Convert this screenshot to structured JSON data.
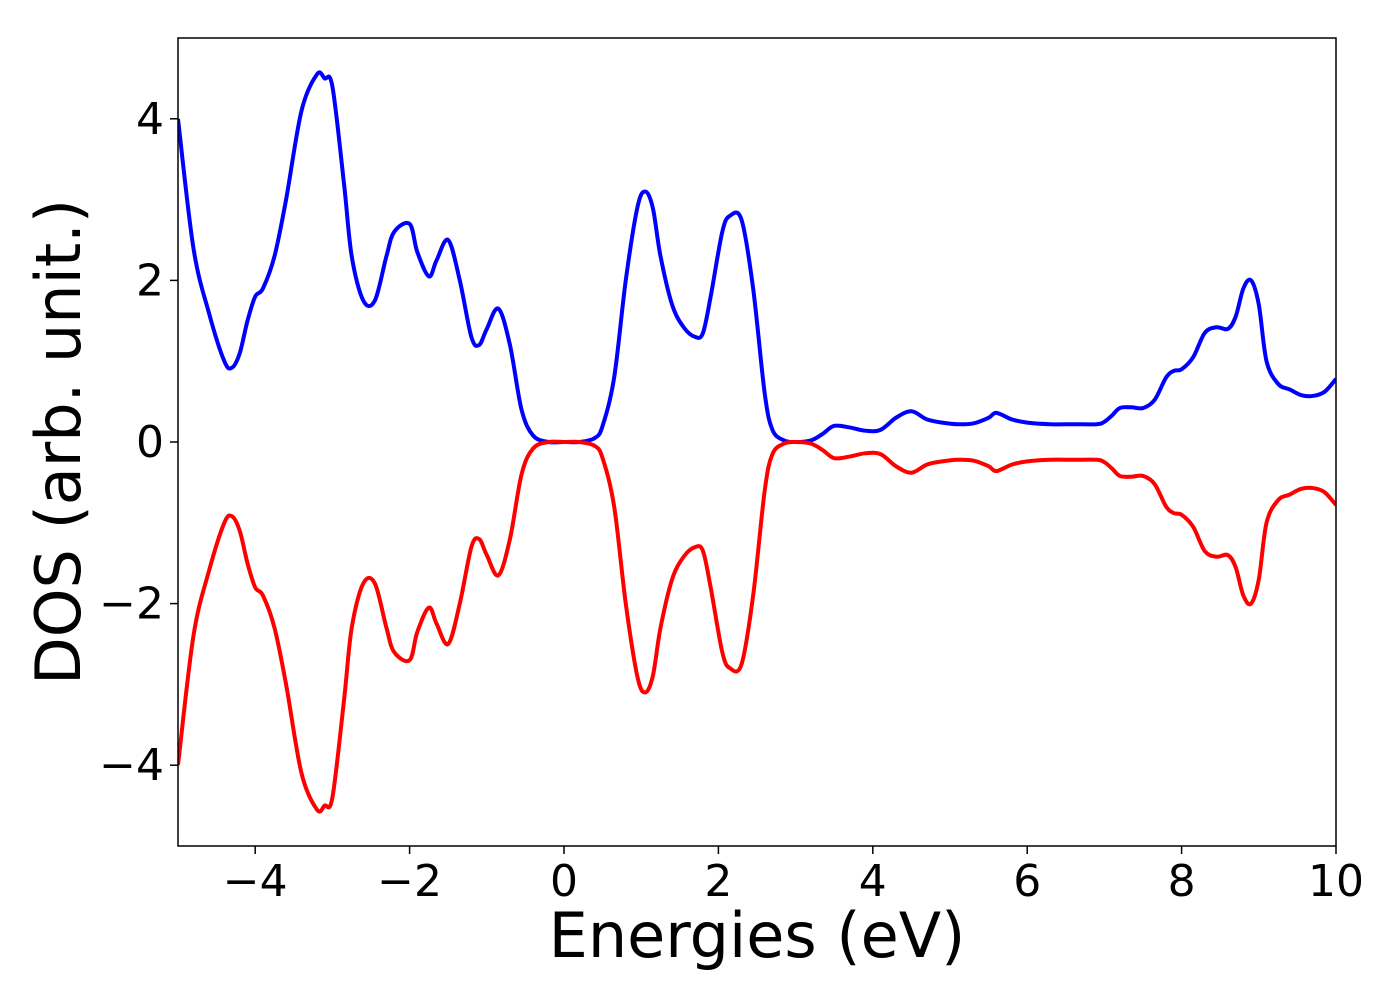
{
  "chart_data": {
    "type": "line",
    "title": "",
    "xlabel": "Energies (eV)",
    "ylabel": "DOS (arb. unit.)",
    "xlim": [
      -5,
      10
    ],
    "ylim": [
      -5,
      5
    ],
    "x_ticks": [
      -4,
      -2,
      0,
      2,
      4,
      6,
      8,
      10
    ],
    "y_ticks": [
      -4,
      -2,
      0,
      2,
      4
    ],
    "x_tick_labels": [
      "−4",
      "−2",
      "0",
      "2",
      "4",
      "6",
      "8",
      "10"
    ],
    "y_tick_labels": [
      "−4",
      "−2",
      "0",
      "2",
      "4"
    ],
    "grid": false,
    "legend": "none",
    "series": [
      {
        "color": "#0000ff",
        "x": [
          -5.0,
          -4.8,
          -4.6,
          -4.4,
          -4.3,
          -4.2,
          -4.1,
          -4.0,
          -3.9,
          -3.75,
          -3.6,
          -3.4,
          -3.2,
          -3.1,
          -3.0,
          -2.85,
          -2.75,
          -2.6,
          -2.45,
          -2.3,
          -2.2,
          -2.0,
          -1.9,
          -1.75,
          -1.65,
          -1.5,
          -1.35,
          -1.2,
          -1.1,
          -1.0,
          -0.85,
          -0.7,
          -0.55,
          -0.4,
          -0.2,
          0.0,
          0.2,
          0.4,
          0.5,
          0.65,
          0.8,
          0.95,
          1.05,
          1.15,
          1.25,
          1.4,
          1.55,
          1.7,
          1.8,
          1.9,
          2.05,
          2.15,
          2.3,
          2.45,
          2.6,
          2.7,
          2.85,
          3.0,
          3.2,
          3.35,
          3.5,
          3.7,
          3.9,
          4.1,
          4.3,
          4.5,
          4.7,
          4.9,
          5.1,
          5.3,
          5.5,
          5.6,
          5.8,
          6.0,
          6.3,
          6.6,
          6.9,
          7.0,
          7.1,
          7.2,
          7.35,
          7.5,
          7.65,
          7.8,
          7.9,
          8.0,
          8.15,
          8.3,
          8.45,
          8.6,
          8.7,
          8.8,
          8.9,
          9.0,
          9.1,
          9.25,
          9.4,
          9.55,
          9.7,
          9.85,
          10.0
        ],
        "y": [
          4.0,
          2.4,
          1.6,
          1.0,
          0.92,
          1.1,
          1.5,
          1.8,
          1.9,
          2.3,
          3.0,
          4.1,
          4.55,
          4.5,
          4.4,
          3.2,
          2.3,
          1.75,
          1.75,
          2.3,
          2.6,
          2.7,
          2.35,
          2.05,
          2.25,
          2.5,
          2.0,
          1.3,
          1.2,
          1.4,
          1.65,
          1.2,
          0.4,
          0.08,
          0.0,
          0.0,
          0.0,
          0.05,
          0.2,
          0.8,
          2.0,
          2.9,
          3.1,
          2.9,
          2.3,
          1.7,
          1.42,
          1.3,
          1.35,
          1.8,
          2.6,
          2.8,
          2.75,
          1.9,
          0.6,
          0.15,
          0.02,
          0.0,
          0.02,
          0.1,
          0.2,
          0.18,
          0.14,
          0.15,
          0.3,
          0.38,
          0.28,
          0.24,
          0.22,
          0.23,
          0.3,
          0.36,
          0.28,
          0.24,
          0.22,
          0.22,
          0.22,
          0.25,
          0.33,
          0.42,
          0.43,
          0.42,
          0.52,
          0.8,
          0.88,
          0.9,
          1.05,
          1.35,
          1.42,
          1.4,
          1.55,
          1.9,
          2.0,
          1.7,
          1.0,
          0.72,
          0.65,
          0.58,
          0.57,
          0.62,
          0.78
        ]
      },
      {
        "color": "#ff0000",
        "x": [
          -5.0,
          -4.8,
          -4.6,
          -4.4,
          -4.3,
          -4.2,
          -4.1,
          -4.0,
          -3.9,
          -3.75,
          -3.6,
          -3.4,
          -3.2,
          -3.1,
          -3.0,
          -2.85,
          -2.75,
          -2.6,
          -2.45,
          -2.3,
          -2.2,
          -2.0,
          -1.9,
          -1.75,
          -1.65,
          -1.5,
          -1.35,
          -1.2,
          -1.1,
          -1.0,
          -0.85,
          -0.7,
          -0.55,
          -0.4,
          -0.2,
          0.0,
          0.2,
          0.4,
          0.5,
          0.65,
          0.8,
          0.95,
          1.05,
          1.15,
          1.25,
          1.4,
          1.55,
          1.7,
          1.8,
          1.9,
          2.05,
          2.15,
          2.3,
          2.45,
          2.6,
          2.7,
          2.85,
          3.0,
          3.2,
          3.35,
          3.5,
          3.7,
          3.9,
          4.1,
          4.3,
          4.5,
          4.7,
          4.9,
          5.1,
          5.3,
          5.5,
          5.6,
          5.8,
          6.0,
          6.3,
          6.6,
          6.9,
          7.0,
          7.1,
          7.2,
          7.35,
          7.5,
          7.65,
          7.8,
          7.9,
          8.0,
          8.15,
          8.3,
          8.45,
          8.6,
          8.7,
          8.8,
          8.9,
          9.0,
          9.1,
          9.25,
          9.4,
          9.55,
          9.7,
          9.85,
          10.0
        ],
        "y": [
          -4.0,
          -2.4,
          -1.6,
          -1.0,
          -0.92,
          -1.1,
          -1.5,
          -1.8,
          -1.9,
          -2.3,
          -3.0,
          -4.1,
          -4.55,
          -4.5,
          -4.4,
          -3.2,
          -2.3,
          -1.75,
          -1.75,
          -2.3,
          -2.6,
          -2.7,
          -2.35,
          -2.05,
          -2.25,
          -2.5,
          -2.0,
          -1.3,
          -1.2,
          -1.4,
          -1.65,
          -1.2,
          -0.4,
          -0.08,
          0.0,
          0.0,
          0.0,
          -0.05,
          -0.2,
          -0.8,
          -2.0,
          -2.9,
          -3.1,
          -2.9,
          -2.3,
          -1.7,
          -1.42,
          -1.3,
          -1.35,
          -1.8,
          -2.6,
          -2.8,
          -2.75,
          -1.9,
          -0.6,
          -0.15,
          -0.02,
          0.0,
          -0.02,
          -0.1,
          -0.2,
          -0.18,
          -0.14,
          -0.15,
          -0.3,
          -0.38,
          -0.28,
          -0.24,
          -0.22,
          -0.23,
          -0.3,
          -0.36,
          -0.28,
          -0.24,
          -0.22,
          -0.22,
          -0.22,
          -0.25,
          -0.33,
          -0.42,
          -0.43,
          -0.42,
          -0.52,
          -0.8,
          -0.88,
          -0.9,
          -1.05,
          -1.35,
          -1.42,
          -1.4,
          -1.55,
          -1.9,
          -2.0,
          -1.7,
          -1.0,
          -0.72,
          -0.65,
          -0.58,
          -0.57,
          -0.62,
          -0.78
        ]
      }
    ]
  }
}
